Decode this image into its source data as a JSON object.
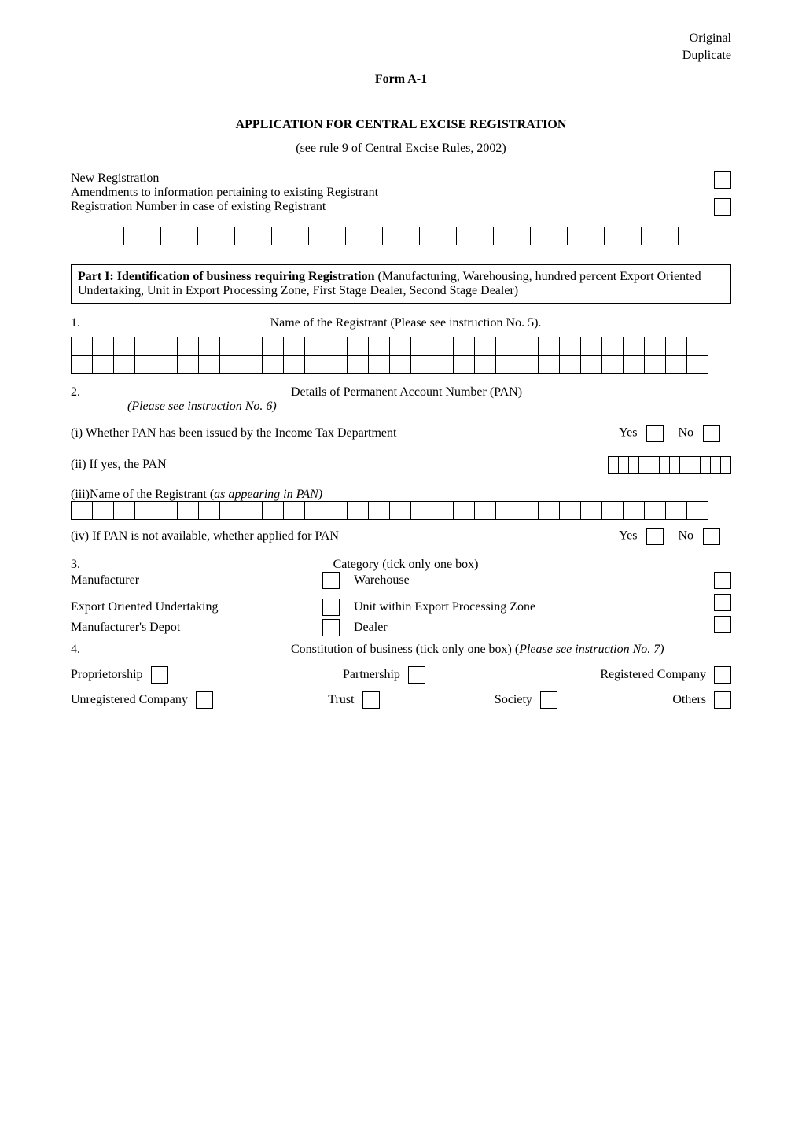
{
  "header": {
    "original": "Original",
    "duplicate": "Duplicate",
    "form_code": "Form A-1",
    "title": "APPLICATION FOR CENTRAL EXCISE REGISTRATION",
    "subtitle": "(see rule 9 of Central Excise Rules, 2002)"
  },
  "regblock": {
    "new_reg": "New Registration",
    "amendments": "Amendments to information pertaining to existing Registrant",
    "reg_number": "Registration Number in case of existing Registrant",
    "reg_number_cells": 15
  },
  "part1": {
    "heading_bold": "Part I:  Identification of business requiring Registration",
    "heading_rest": " (Manufacturing, Warehousing, hundred percent Export Oriented Undertaking, Unit in Export Processing Zone, First Stage Dealer, Second Stage Dealer)"
  },
  "q1": {
    "num": "1.",
    "text": "Name of the Registrant (Please see instruction No. 5).",
    "cells_per_row": 30,
    "rows": 2
  },
  "q2": {
    "num": "2.",
    "lead": "Details of Permanent Account Number (PAN) ",
    "note_italic": "(Please see instruction No. 6)"
  },
  "q2_i": {
    "text": "(i) Whether PAN has been issued by the Income Tax Department",
    "yes": "Yes",
    "no": "No"
  },
  "q2_ii": {
    "text": "(ii) If yes, the PAN",
    "cells": 12
  },
  "q2_iii": {
    "text": "(iii)Name of the Registrant (",
    "italic": "as appearing in PAN)",
    "cells": 30
  },
  "q2_iv": {
    "text": "(iv) If PAN is not available, whether applied for PAN",
    "yes": "Yes",
    "no": "No"
  },
  "q3": {
    "num": "3.",
    "title": "Category (tick only one box)",
    "manufacturer": "Manufacturer",
    "warehouse": "Warehouse",
    "eou": "Export Oriented Undertaking",
    "uepz": "Unit within Export Processing Zone",
    "mdepot": "Manufacturer's Depot",
    "dealer": "Dealer"
  },
  "q4": {
    "num": "4.",
    "lead": "Constitution of business (tick only one box) (",
    "note_italic": "Please see instruction No. 7)",
    "proprietorship": "Proprietorship",
    "partnership": "Partnership",
    "registered_company": "Registered Company",
    "unregistered_company": "Unregistered Company",
    "trust": "Trust",
    "society": "Society",
    "others": "Others"
  }
}
